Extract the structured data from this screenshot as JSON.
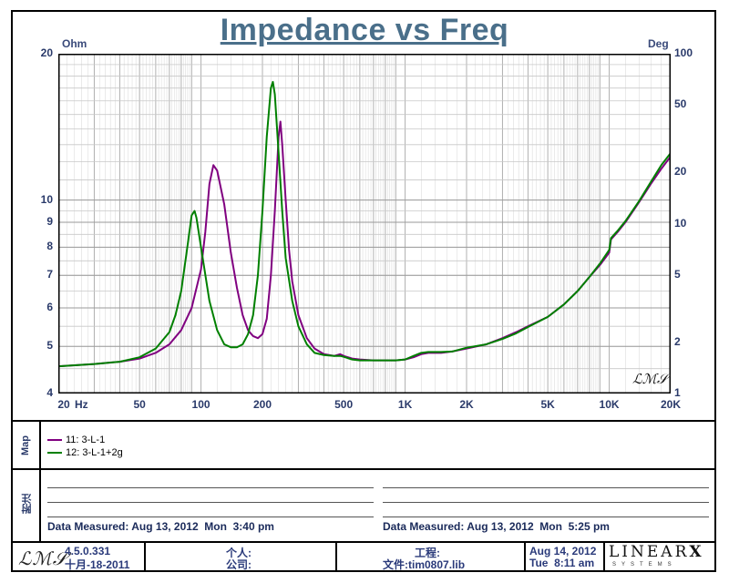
{
  "chart_data": {
    "type": "line",
    "title": "Impedance vs Freq",
    "xlabel": "Hz",
    "x_scale": "log",
    "xlim": [
      20,
      20000
    ],
    "x_ticks": [
      "20",
      "50",
      "100",
      "200",
      "500",
      "1K",
      "2K",
      "5K",
      "10K",
      "20K"
    ],
    "x_tick_values": [
      20,
      50,
      100,
      200,
      500,
      1000,
      2000,
      5000,
      10000,
      20000
    ],
    "left_axis": {
      "label": "Ohm",
      "scale": "log",
      "range": [
        4,
        20
      ],
      "ticks": [
        "4",
        "5",
        "6",
        "7",
        "8",
        "9",
        "10",
        "20"
      ],
      "tick_values": [
        4,
        5,
        6,
        7,
        8,
        9,
        10,
        20
      ]
    },
    "right_axis": {
      "label": "Deg",
      "scale": "log",
      "range": [
        1,
        100
      ],
      "ticks": [
        "1",
        "2",
        "5",
        "10",
        "20",
        "50",
        "100"
      ],
      "tick_values": [
        1,
        2,
        5,
        10,
        20,
        50,
        100
      ]
    },
    "grid": true,
    "series": [
      {
        "name": "11: 3-L-1",
        "color": "#800080",
        "points": [
          [
            20,
            4.55
          ],
          [
            30,
            4.6
          ],
          [
            40,
            4.65
          ],
          [
            50,
            4.72
          ],
          [
            60,
            4.85
          ],
          [
            70,
            5.05
          ],
          [
            80,
            5.4
          ],
          [
            90,
            6.0
          ],
          [
            100,
            7.2
          ],
          [
            105,
            8.6
          ],
          [
            110,
            10.8
          ],
          [
            115,
            11.8
          ],
          [
            120,
            11.5
          ],
          [
            130,
            9.8
          ],
          [
            140,
            7.8
          ],
          [
            150,
            6.6
          ],
          [
            160,
            5.8
          ],
          [
            170,
            5.4
          ],
          [
            180,
            5.25
          ],
          [
            190,
            5.2
          ],
          [
            200,
            5.3
          ],
          [
            210,
            5.7
          ],
          [
            220,
            7.0
          ],
          [
            230,
            9.5
          ],
          [
            240,
            13.5
          ],
          [
            245,
            14.5
          ],
          [
            250,
            13.0
          ],
          [
            260,
            10.0
          ],
          [
            270,
            7.9
          ],
          [
            280,
            6.8
          ],
          [
            300,
            5.8
          ],
          [
            330,
            5.2
          ],
          [
            360,
            4.95
          ],
          [
            400,
            4.82
          ],
          [
            450,
            4.78
          ],
          [
            480,
            4.82
          ],
          [
            500,
            4.78
          ],
          [
            550,
            4.72
          ],
          [
            600,
            4.7
          ],
          [
            700,
            4.68
          ],
          [
            800,
            4.68
          ],
          [
            900,
            4.68
          ],
          [
            1000,
            4.7
          ],
          [
            1100,
            4.75
          ],
          [
            1200,
            4.82
          ],
          [
            1300,
            4.85
          ],
          [
            1500,
            4.85
          ],
          [
            1700,
            4.88
          ],
          [
            2000,
            4.95
          ],
          [
            2500,
            5.05
          ],
          [
            3000,
            5.2
          ],
          [
            3500,
            5.35
          ],
          [
            4000,
            5.5
          ],
          [
            5000,
            5.75
          ],
          [
            6000,
            6.1
          ],
          [
            7000,
            6.5
          ],
          [
            8000,
            6.95
          ],
          [
            9000,
            7.35
          ],
          [
            10000,
            7.8
          ],
          [
            10200,
            8.3
          ],
          [
            11000,
            8.6
          ],
          [
            12000,
            9.0
          ],
          [
            14000,
            9.9
          ],
          [
            16000,
            10.8
          ],
          [
            18000,
            11.6
          ],
          [
            20000,
            12.3
          ]
        ]
      },
      {
        "name": "12: 3-L-1+2g",
        "color": "#008000",
        "points": [
          [
            20,
            4.55
          ],
          [
            30,
            4.6
          ],
          [
            40,
            4.65
          ],
          [
            50,
            4.75
          ],
          [
            60,
            4.95
          ],
          [
            70,
            5.35
          ],
          [
            75,
            5.8
          ],
          [
            80,
            6.5
          ],
          [
            85,
            7.8
          ],
          [
            90,
            9.3
          ],
          [
            93,
            9.5
          ],
          [
            95,
            9.2
          ],
          [
            100,
            8.0
          ],
          [
            110,
            6.2
          ],
          [
            120,
            5.4
          ],
          [
            130,
            5.05
          ],
          [
            140,
            4.98
          ],
          [
            150,
            4.98
          ],
          [
            160,
            5.05
          ],
          [
            170,
            5.3
          ],
          [
            180,
            5.8
          ],
          [
            190,
            7.0
          ],
          [
            200,
            9.5
          ],
          [
            210,
            13.5
          ],
          [
            220,
            17.0
          ],
          [
            225,
            17.5
          ],
          [
            230,
            16.5
          ],
          [
            240,
            12.5
          ],
          [
            250,
            9.5
          ],
          [
            260,
            7.6
          ],
          [
            280,
            6.2
          ],
          [
            300,
            5.5
          ],
          [
            330,
            5.05
          ],
          [
            360,
            4.85
          ],
          [
            400,
            4.8
          ],
          [
            450,
            4.78
          ],
          [
            480,
            4.78
          ],
          [
            500,
            4.76
          ],
          [
            550,
            4.7
          ],
          [
            600,
            4.68
          ],
          [
            700,
            4.68
          ],
          [
            800,
            4.68
          ],
          [
            900,
            4.68
          ],
          [
            1000,
            4.7
          ],
          [
            1100,
            4.78
          ],
          [
            1200,
            4.85
          ],
          [
            1300,
            4.87
          ],
          [
            1500,
            4.87
          ],
          [
            1700,
            4.88
          ],
          [
            2000,
            4.97
          ],
          [
            2500,
            5.05
          ],
          [
            3000,
            5.18
          ],
          [
            3500,
            5.32
          ],
          [
            4000,
            5.48
          ],
          [
            5000,
            5.75
          ],
          [
            6000,
            6.1
          ],
          [
            7000,
            6.5
          ],
          [
            8000,
            6.95
          ],
          [
            9000,
            7.4
          ],
          [
            10000,
            7.9
          ],
          [
            10200,
            8.35
          ],
          [
            11000,
            8.65
          ],
          [
            12000,
            9.05
          ],
          [
            14000,
            9.95
          ],
          [
            16000,
            10.9
          ],
          [
            18000,
            11.8
          ],
          [
            20000,
            12.5
          ]
        ]
      }
    ]
  },
  "legend": {
    "panel_label": "Map",
    "items": [
      {
        "label": "11: 3-L-1",
        "color": "#800080"
      },
      {
        "label": "12: 3-L-1+2g",
        "color": "#008000"
      }
    ]
  },
  "notes": {
    "panel_label": "附注",
    "left_measured": "Data Measured: Aug 13, 2012  Mon  3:40 pm",
    "right_measured": "Data Measured: Aug 13, 2012  Mon  5:25 pm"
  },
  "footer": {
    "logo": "LMS",
    "version": "4.5.0.331",
    "version_date": "十月-18-2011",
    "person_label": "个人:",
    "company_label": "公司:",
    "project_label": "工程:",
    "file_label": "文件:tim0807.lib",
    "date": "Aug 14, 2012",
    "time": "Tue  8:11 am",
    "brand": "LINEARX",
    "brand_sub": "SYSTEMS"
  },
  "watermark": "LMS"
}
